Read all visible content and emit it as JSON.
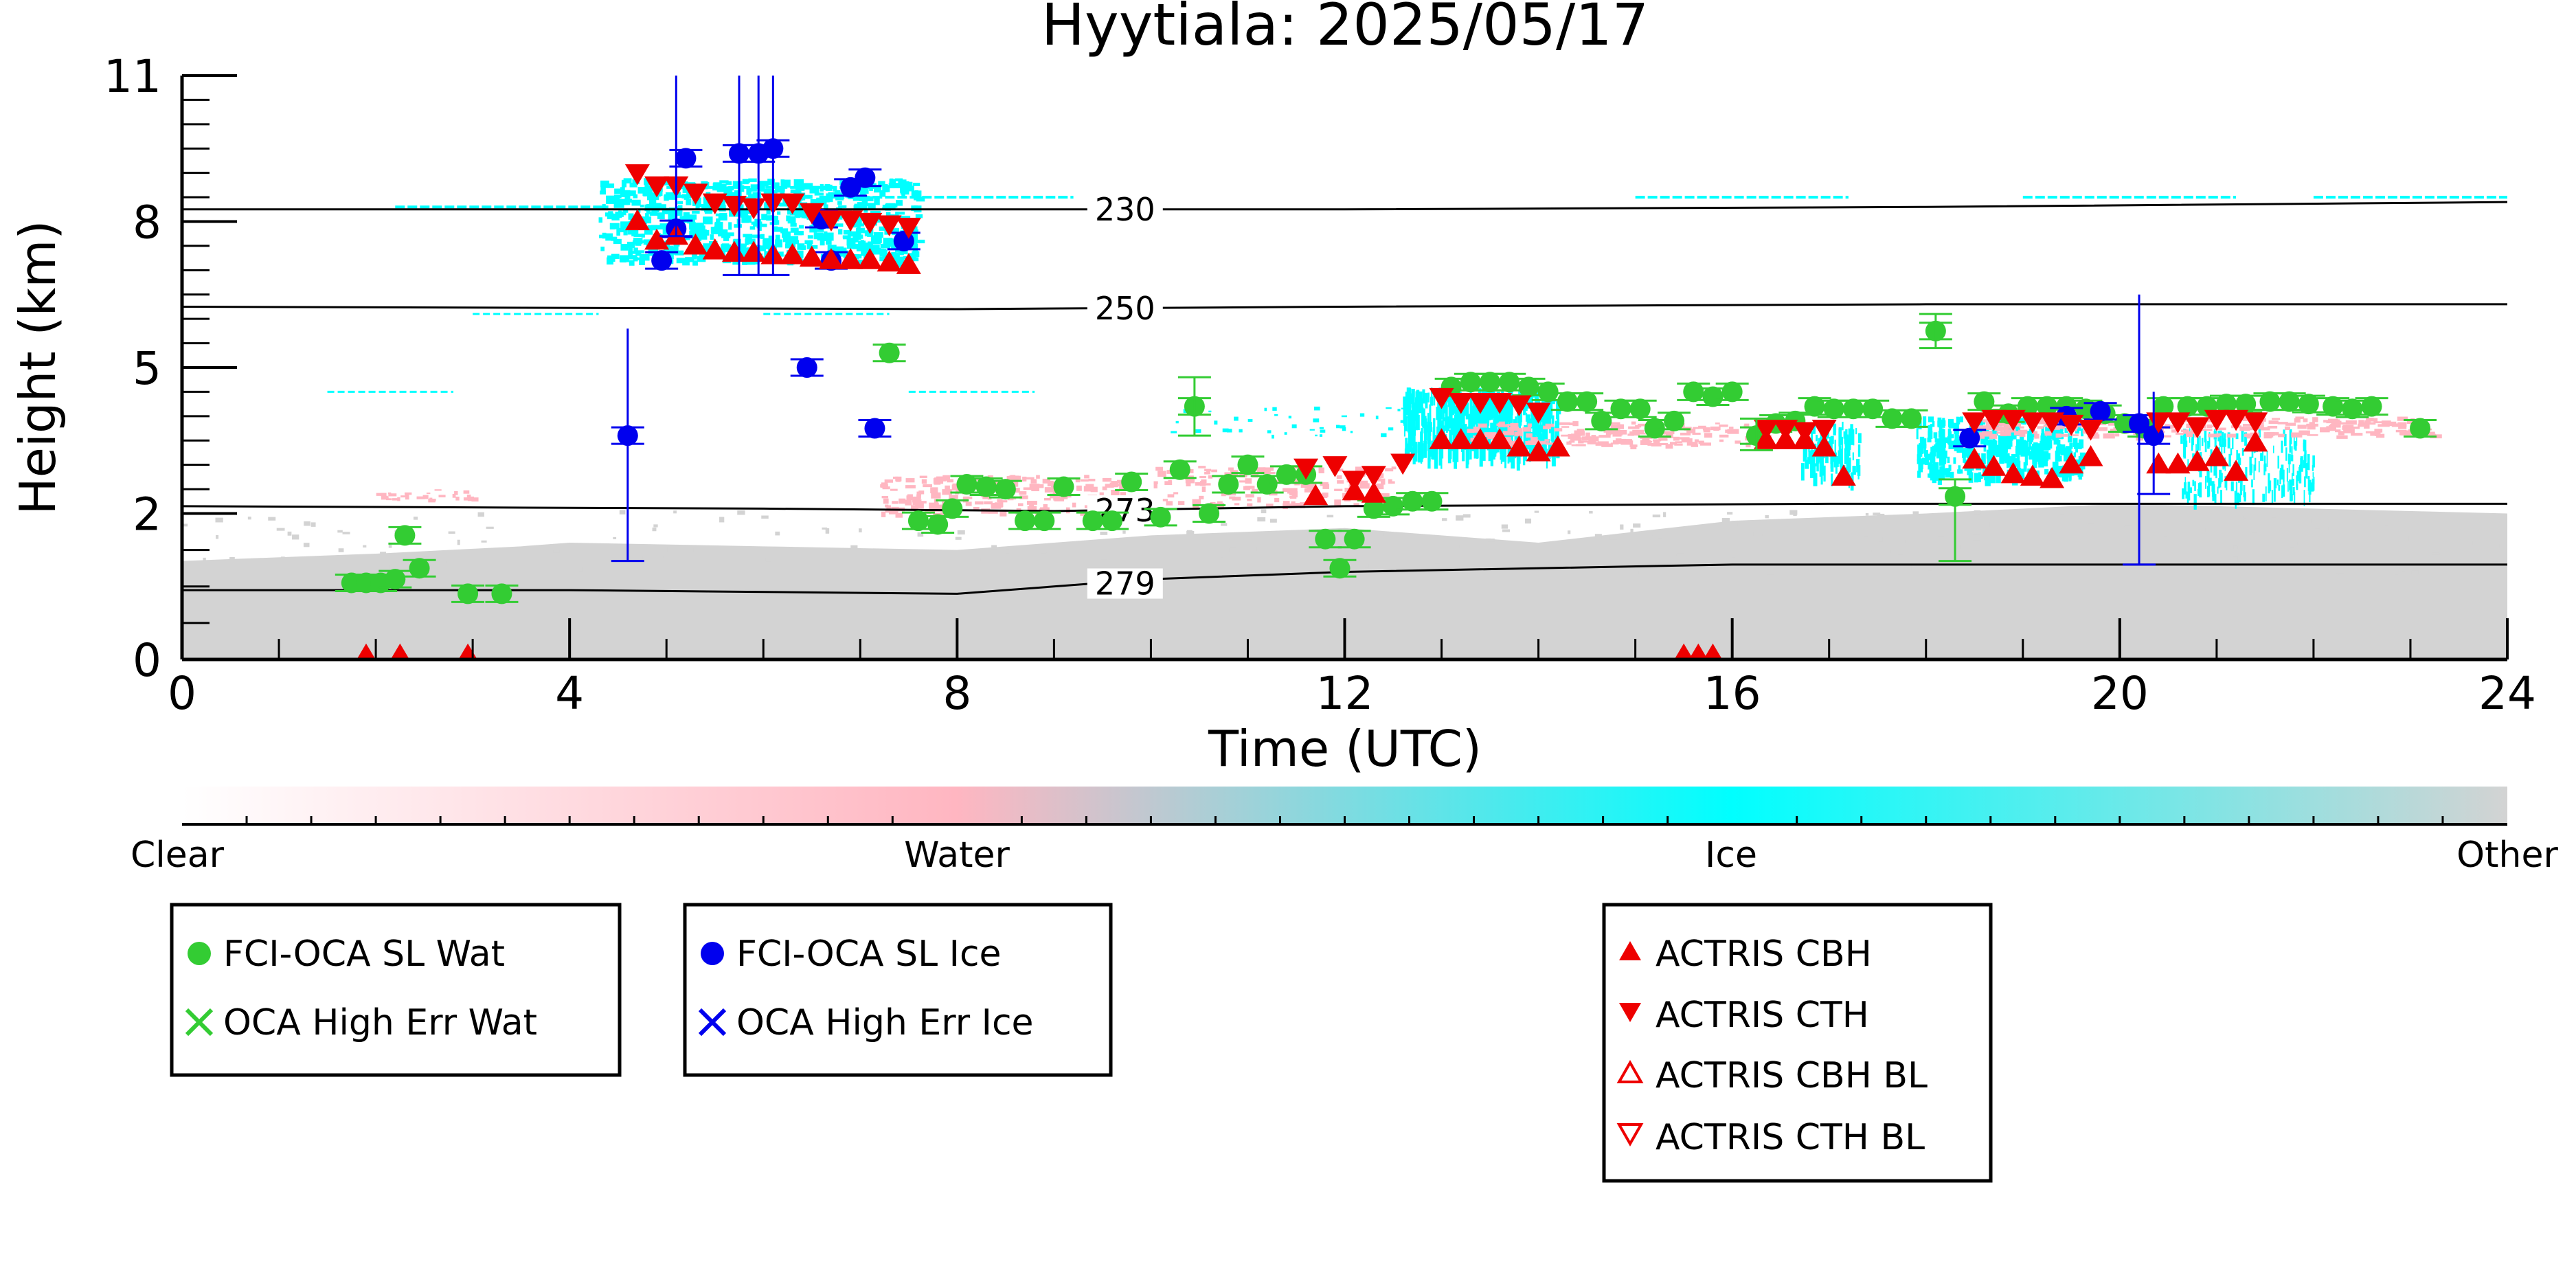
{
  "chart_data": {
    "type": "scatter",
    "title": "Hyytiala: 2025/05/17",
    "xlabel": "Time (UTC)",
    "ylabel": "Height (km)",
    "xlim": [
      0,
      24
    ],
    "ylim": [
      0,
      11
    ],
    "x_ticks": [
      0,
      4,
      8,
      12,
      16,
      20,
      24
    ],
    "y_ticks": [
      0,
      2,
      5,
      8,
      11
    ],
    "grid": false,
    "colors": {
      "water": "#ffb6c1",
      "ice": "#00ffff",
      "other": "#d3d3d3",
      "oca_wat": "#33cc33",
      "oca_ice": "#0000ee",
      "actris": "#ee0000"
    },
    "isotherms": [
      {
        "label": "230",
        "label_x": 9.4,
        "points": [
          [
            0,
            8.25
          ],
          [
            6,
            8.25
          ],
          [
            12,
            8.25
          ],
          [
            18,
            8.3
          ],
          [
            24,
            8.4
          ]
        ]
      },
      {
        "label": "250",
        "label_x": 9.4,
        "points": [
          [
            0,
            6.25
          ],
          [
            8,
            6.2
          ],
          [
            12,
            6.25
          ],
          [
            18,
            6.3
          ],
          [
            24,
            6.3
          ]
        ]
      },
      {
        "label": "273",
        "label_x": 9.4,
        "points": [
          [
            0,
            2.15
          ],
          [
            6,
            2.1
          ],
          [
            9,
            2.05
          ],
          [
            12,
            2.15
          ],
          [
            17,
            2.2
          ],
          [
            24,
            2.2
          ]
        ]
      },
      {
        "label": "279",
        "label_x": 9.4,
        "points": [
          [
            0,
            0.95
          ],
          [
            4,
            0.95
          ],
          [
            8,
            0.9
          ],
          [
            10,
            1.1
          ],
          [
            12,
            1.2
          ],
          [
            16,
            1.3
          ],
          [
            20,
            1.3
          ],
          [
            24,
            1.3
          ]
        ]
      }
    ],
    "series": [
      {
        "name": "FCI-OCA SL Wat",
        "marker": "circle",
        "color": "#33cc33",
        "points": [
          [
            1.75,
            1.05
          ],
          [
            1.9,
            1.05
          ],
          [
            2.05,
            1.05
          ],
          [
            2.2,
            1.1
          ],
          [
            2.3,
            1.7
          ],
          [
            2.45,
            1.25
          ],
          [
            2.95,
            0.9
          ],
          [
            3.3,
            0.9
          ],
          [
            7.3,
            5.3
          ],
          [
            7.6,
            1.9
          ],
          [
            7.8,
            1.85
          ],
          [
            7.95,
            2.1
          ],
          [
            8.1,
            2.6
          ],
          [
            8.3,
            2.55
          ],
          [
            8.5,
            2.5
          ],
          [
            8.7,
            1.9
          ],
          [
            8.9,
            1.9
          ],
          [
            9.1,
            2.55
          ],
          [
            9.4,
            1.9
          ],
          [
            9.6,
            1.9
          ],
          [
            9.8,
            2.65
          ],
          [
            10.1,
            1.95
          ],
          [
            10.3,
            2.9
          ],
          [
            10.45,
            4.2
          ],
          [
            10.6,
            2.0
          ],
          [
            10.8,
            2.6
          ],
          [
            11.0,
            3.0
          ],
          [
            11.2,
            2.6
          ],
          [
            11.4,
            2.8
          ],
          [
            11.6,
            2.8
          ],
          [
            11.8,
            1.65
          ],
          [
            11.95,
            1.25
          ],
          [
            12.1,
            1.65
          ],
          [
            12.3,
            2.1
          ],
          [
            12.5,
            2.15
          ],
          [
            12.7,
            2.25
          ],
          [
            12.9,
            2.25
          ],
          [
            13.1,
            4.6
          ],
          [
            13.3,
            4.7
          ],
          [
            13.5,
            4.7
          ],
          [
            13.7,
            4.7
          ],
          [
            13.9,
            4.6
          ],
          [
            14.1,
            4.5
          ],
          [
            14.3,
            4.3
          ],
          [
            14.5,
            4.3
          ],
          [
            14.65,
            3.9
          ],
          [
            14.85,
            4.15
          ],
          [
            15.05,
            4.15
          ],
          [
            15.2,
            3.75
          ],
          [
            15.4,
            3.9
          ],
          [
            15.6,
            4.5
          ],
          [
            15.8,
            4.4
          ],
          [
            16.0,
            4.5
          ],
          [
            16.25,
            3.6
          ],
          [
            16.45,
            3.85
          ],
          [
            16.65,
            3.9
          ],
          [
            16.85,
            4.2
          ],
          [
            17.05,
            4.15
          ],
          [
            17.25,
            4.15
          ],
          [
            17.45,
            4.15
          ],
          [
            17.65,
            3.95
          ],
          [
            17.85,
            3.95
          ],
          [
            18.1,
            5.75
          ],
          [
            18.3,
            2.35
          ],
          [
            18.6,
            4.3
          ],
          [
            18.85,
            4.05
          ],
          [
            19.05,
            4.2
          ],
          [
            19.25,
            4.2
          ],
          [
            19.45,
            4.2
          ],
          [
            19.65,
            4.15
          ],
          [
            19.85,
            4.05
          ],
          [
            20.05,
            3.85
          ],
          [
            20.25,
            3.75
          ],
          [
            20.45,
            4.2
          ],
          [
            20.7,
            4.2
          ],
          [
            20.9,
            4.2
          ],
          [
            21.1,
            4.25
          ],
          [
            21.3,
            4.25
          ],
          [
            21.55,
            4.3
          ],
          [
            21.75,
            4.3
          ],
          [
            21.95,
            4.25
          ],
          [
            22.2,
            4.2
          ],
          [
            22.4,
            4.15
          ],
          [
            22.6,
            4.2
          ],
          [
            23.1,
            3.75
          ]
        ]
      },
      {
        "name": "OCA High Err Wat",
        "marker": "x",
        "color": "#33cc33",
        "points": []
      },
      {
        "name": "FCI-OCA SL Ice",
        "marker": "circle",
        "color": "#0000ee",
        "points": [
          [
            4.6,
            3.6
          ],
          [
            4.95,
            7.2
          ],
          [
            5.1,
            7.85
          ],
          [
            5.2,
            9.3
          ],
          [
            5.75,
            9.4
          ],
          [
            5.95,
            9.4
          ],
          [
            6.1,
            9.5
          ],
          [
            6.45,
            5.0
          ],
          [
            6.6,
            8.05
          ],
          [
            6.7,
            7.2
          ],
          [
            6.9,
            8.7
          ],
          [
            7.05,
            8.9
          ],
          [
            7.15,
            3.75
          ],
          [
            7.45,
            7.6
          ],
          [
            18.45,
            3.55
          ],
          [
            19.45,
            4.0
          ],
          [
            19.8,
            4.1
          ],
          [
            20.2,
            3.85
          ],
          [
            20.35,
            3.6
          ]
        ]
      },
      {
        "name": "OCA High Err Ice",
        "marker": "x",
        "color": "#0000ee",
        "points": []
      },
      {
        "name": "ACTRIS CBH",
        "marker": "triangle-up",
        "color": "#ee0000",
        "points": [
          [
            4.7,
            8.0
          ],
          [
            4.9,
            7.6
          ],
          [
            5.1,
            7.7
          ],
          [
            5.3,
            7.5
          ],
          [
            5.5,
            7.4
          ],
          [
            5.7,
            7.35
          ],
          [
            5.9,
            7.35
          ],
          [
            6.1,
            7.3
          ],
          [
            6.3,
            7.3
          ],
          [
            6.5,
            7.25
          ],
          [
            6.7,
            7.2
          ],
          [
            6.9,
            7.2
          ],
          [
            7.1,
            7.2
          ],
          [
            7.3,
            7.15
          ],
          [
            7.5,
            7.1
          ],
          [
            11.7,
            2.35
          ],
          [
            12.1,
            2.45
          ],
          [
            12.3,
            2.4
          ],
          [
            13.0,
            3.5
          ],
          [
            13.2,
            3.5
          ],
          [
            13.4,
            3.5
          ],
          [
            13.6,
            3.5
          ],
          [
            13.8,
            3.35
          ],
          [
            14.0,
            3.25
          ],
          [
            14.2,
            3.35
          ],
          [
            16.35,
            3.5
          ],
          [
            16.55,
            3.5
          ],
          [
            16.75,
            3.5
          ],
          [
            16.95,
            3.35
          ],
          [
            17.15,
            2.75
          ],
          [
            18.5,
            3.1
          ],
          [
            18.7,
            2.95
          ],
          [
            18.9,
            2.8
          ],
          [
            19.1,
            2.75
          ],
          [
            19.3,
            2.7
          ],
          [
            19.5,
            3.0
          ],
          [
            19.7,
            3.15
          ],
          [
            20.4,
            3.0
          ],
          [
            20.6,
            3.0
          ],
          [
            20.8,
            3.05
          ],
          [
            21.0,
            3.15
          ],
          [
            21.2,
            2.85
          ],
          [
            21.4,
            3.45
          ],
          [
            1.9,
            0.05
          ],
          [
            2.25,
            0.05
          ],
          [
            2.95,
            0.05
          ],
          [
            15.5,
            0.05
          ],
          [
            15.65,
            0.05
          ],
          [
            15.8,
            0.05
          ]
        ]
      },
      {
        "name": "ACTRIS CTH",
        "marker": "triangle-down",
        "color": "#ee0000",
        "points": [
          [
            4.7,
            9.0
          ],
          [
            4.9,
            8.75
          ],
          [
            5.1,
            8.75
          ],
          [
            5.3,
            8.6
          ],
          [
            5.5,
            8.4
          ],
          [
            5.7,
            8.35
          ],
          [
            5.9,
            8.3
          ],
          [
            6.1,
            8.4
          ],
          [
            6.3,
            8.4
          ],
          [
            6.5,
            8.2
          ],
          [
            6.7,
            8.05
          ],
          [
            6.9,
            8.05
          ],
          [
            7.1,
            8.0
          ],
          [
            7.3,
            7.95
          ],
          [
            7.5,
            7.9
          ],
          [
            11.6,
            2.95
          ],
          [
            11.9,
            3.0
          ],
          [
            12.1,
            2.7
          ],
          [
            12.3,
            2.8
          ],
          [
            12.6,
            3.05
          ],
          [
            13.0,
            4.4
          ],
          [
            13.2,
            4.3
          ],
          [
            13.4,
            4.3
          ],
          [
            13.6,
            4.3
          ],
          [
            13.8,
            4.25
          ],
          [
            14.0,
            4.1
          ],
          [
            16.35,
            3.75
          ],
          [
            16.55,
            3.75
          ],
          [
            16.75,
            3.7
          ],
          [
            16.95,
            3.75
          ],
          [
            18.5,
            3.9
          ],
          [
            18.7,
            3.95
          ],
          [
            18.9,
            3.95
          ],
          [
            19.1,
            3.9
          ],
          [
            19.3,
            3.9
          ],
          [
            19.5,
            3.85
          ],
          [
            19.7,
            3.75
          ],
          [
            20.4,
            3.9
          ],
          [
            20.6,
            3.9
          ],
          [
            20.8,
            3.8
          ],
          [
            21.0,
            3.95
          ],
          [
            21.2,
            3.95
          ],
          [
            21.4,
            3.9
          ]
        ]
      },
      {
        "name": "ACTRIS CBH BL",
        "marker": "triangle-up-open",
        "color": "#ee0000",
        "points": []
      },
      {
        "name": "ACTRIS CTH BL",
        "marker": "triangle-down-open",
        "color": "#ee0000",
        "points": []
      }
    ],
    "colorbar": {
      "labels": [
        "Clear",
        "Water",
        "Ice",
        "Other"
      ],
      "stops": [
        "#ffffff",
        "#ffb6c1",
        "#00ffff",
        "#d3d3d3"
      ]
    }
  }
}
